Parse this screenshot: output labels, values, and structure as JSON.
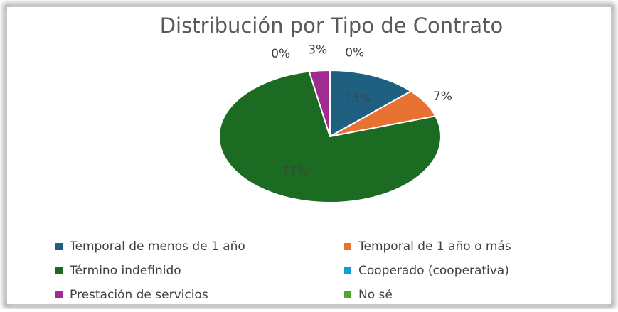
{
  "chart_data": {
    "type": "pie",
    "title": "Distribución por Tipo de Contrato",
    "categories": [
      "Temporal de menos de 1 año",
      "Temporal de 1 año o más",
      "Término indefinido",
      "Cooperado (cooperativa)",
      "Prestación de servicios",
      "No sé"
    ],
    "values": [
      13,
      7,
      77,
      0,
      3,
      0
    ],
    "value_labels": [
      "13%",
      "7%",
      "77%",
      "0%",
      "3%",
      "0%"
    ],
    "colors": [
      "#1f5f80",
      "#e97132",
      "#1c6b23",
      "#0f9ed5",
      "#a02b93",
      "#4ea72e"
    ],
    "legend": "bottom"
  }
}
